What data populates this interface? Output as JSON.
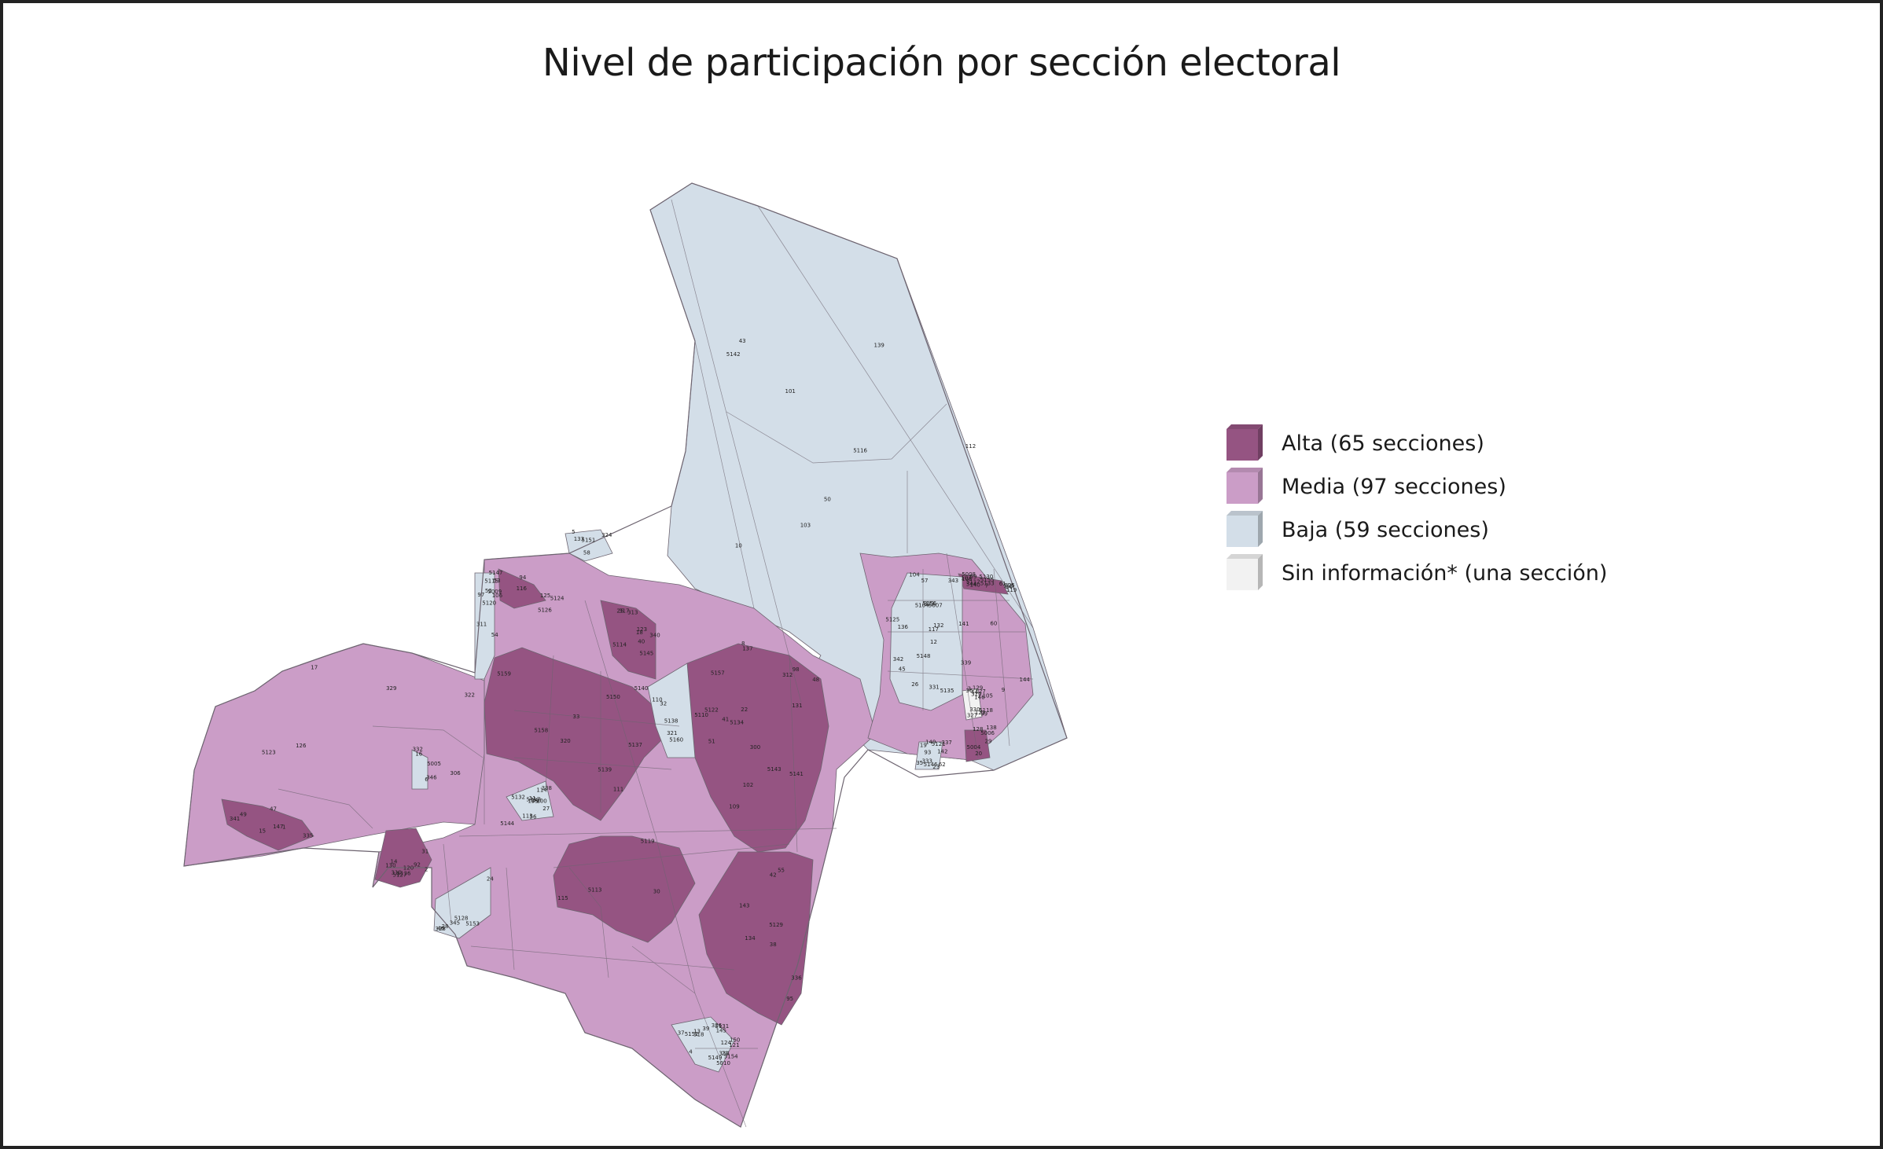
{
  "title": "Nivel de participación por sección electoral",
  "colors": {
    "alta": "#955482",
    "media": "#cb9dc7",
    "baja": "#d3dee8",
    "sin_info": "#f2f2f2",
    "border": "#6d6470"
  },
  "legend": [
    {
      "key": "alta",
      "label": "Alta (65 secciones)",
      "icon": "cube-swatch-dark-purple"
    },
    {
      "key": "media",
      "label": "Media (97 secciones)",
      "icon": "cube-swatch-light-purple"
    },
    {
      "key": "baja",
      "label": "Baja (59 secciones)",
      "icon": "cube-swatch-light-blue"
    },
    {
      "key": "sin_info",
      "label": "Sin información* (una sección)",
      "icon": "cube-swatch-white"
    }
  ],
  "section_labels": [
    "300",
    "306",
    "310",
    "311",
    "312",
    "313",
    "320",
    "319",
    "317",
    "318",
    "322",
    "323",
    "321",
    "97",
    "92",
    "93",
    "94",
    "98",
    "95",
    "99",
    "100",
    "101",
    "102",
    "103",
    "104",
    "105",
    "106",
    "107",
    "108",
    "109",
    "110",
    "111",
    "112",
    "113",
    "114",
    "115",
    "116",
    "117",
    "118",
    "119",
    "120",
    "121",
    "122",
    "123",
    "124",
    "125",
    "126",
    "127",
    "128",
    "129",
    "130",
    "131",
    "132",
    "133",
    "134",
    "135",
    "136",
    "137",
    "138",
    "139",
    "140",
    "141",
    "142",
    "143",
    "144",
    "145",
    "146",
    "147",
    "148",
    "149",
    "150",
    "5104",
    "5110",
    "5112",
    "5113",
    "5114",
    "5115",
    "5116",
    "5117",
    "5118",
    "5119",
    "5120",
    "5121",
    "5122",
    "5123",
    "5124",
    "5125",
    "5126",
    "5127",
    "5128",
    "5129",
    "5130",
    "5131",
    "5132",
    "5133",
    "5134",
    "5135",
    "5136",
    "5137",
    "5138",
    "5139",
    "5140",
    "5141",
    "5142",
    "5143",
    "5144",
    "5145",
    "5146",
    "5147",
    "5148",
    "5149",
    "5150",
    "5151",
    "5152",
    "5153",
    "5154",
    "5155",
    "5156",
    "5157",
    "5158",
    "5159",
    "5160",
    "5004",
    "5005",
    "5006",
    "5007",
    "5008",
    "5009",
    "5010",
    "1",
    "2",
    "3",
    "4",
    "5",
    "6",
    "7",
    "8",
    "9",
    "10",
    "11",
    "12",
    "13",
    "14",
    "15",
    "16",
    "17",
    "18",
    "19",
    "20",
    "21",
    "22",
    "23",
    "24",
    "25",
    "26",
    "27",
    "28",
    "29",
    "30",
    "31",
    "32",
    "33",
    "34",
    "35",
    "36",
    "37",
    "38",
    "39",
    "40",
    "41",
    "42",
    "43",
    "44",
    "45",
    "46",
    "47",
    "48",
    "49",
    "50",
    "51",
    "52",
    "53",
    "54",
    "55",
    "56",
    "57",
    "58",
    "59",
    "60",
    "61",
    "62",
    "324",
    "325",
    "326",
    "327",
    "328",
    "329",
    "330",
    "331",
    "332",
    "333",
    "334",
    "335",
    "336",
    "337",
    "338",
    "339",
    "340",
    "341",
    "342",
    "343",
    "344",
    "345",
    "346"
  ]
}
